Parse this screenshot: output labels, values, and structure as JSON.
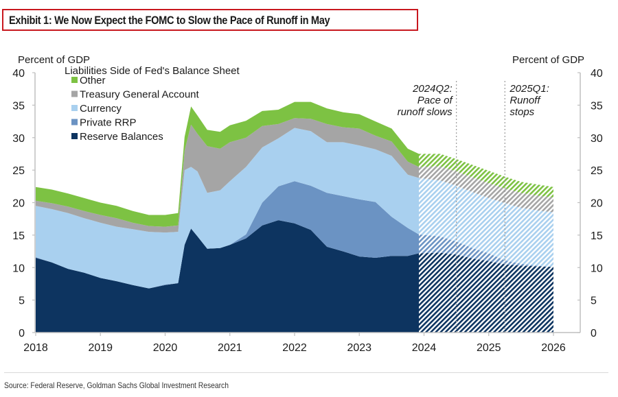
{
  "header": {
    "title": "Exhibit 1: We Now Expect the FOMC to Slow the Pace of Runoff in May"
  },
  "footer": {
    "source": "Source: Federal Reserve, Goldman Sachs Global Investment Research"
  },
  "chart_data": {
    "type": "area",
    "stacked": true,
    "title": "Liabilities Side of Fed's Balance Sheet",
    "ylabel_left": "Percent of GDP",
    "ylabel_right": "Percent of GDP",
    "xlabel": "",
    "xlim": [
      2018,
      2026
    ],
    "ylim": [
      0,
      40
    ],
    "yticks": [
      0,
      5,
      10,
      15,
      20,
      25,
      30,
      35,
      40
    ],
    "xticks": [
      "2018",
      "2019",
      "2020",
      "2021",
      "2022",
      "2023",
      "2024",
      "2025",
      "2026"
    ],
    "grid": false,
    "legend_position": "top-left",
    "forecast_start": 2023.92,
    "forecast_style": "hatched",
    "annotations": [
      {
        "x": 2024.5,
        "lines": [
          "2024Q2:",
          "Pace of",
          "runoff slows"
        ],
        "style": "dotted-vertical-line"
      },
      {
        "x": 2025.25,
        "lines": [
          "2025Q1:",
          "Runoff",
          "stops"
        ],
        "style": "dotted-vertical-line"
      }
    ],
    "x": [
      2018.0,
      2018.25,
      2018.5,
      2018.75,
      2019.0,
      2019.25,
      2019.5,
      2019.75,
      2020.0,
      2020.2,
      2020.3,
      2020.4,
      2020.5,
      2020.65,
      2020.85,
      2021.0,
      2021.25,
      2021.5,
      2021.75,
      2022.0,
      2022.25,
      2022.5,
      2022.75,
      2023.0,
      2023.25,
      2023.5,
      2023.75,
      2023.92,
      2024.25,
      2024.5,
      2024.75,
      2025.0,
      2025.25,
      2025.5,
      2025.75,
      2026.0
    ],
    "series": [
      {
        "name": "Reserve Balances",
        "color": "#0d3460",
        "values": [
          11.5,
          10.8,
          9.8,
          9.2,
          8.4,
          7.9,
          7.3,
          6.8,
          7.3,
          7.6,
          13.5,
          16.0,
          14.8,
          12.9,
          13.0,
          13.5,
          14.5,
          16.5,
          17.3,
          16.8,
          15.8,
          13.2,
          12.5,
          11.7,
          11.5,
          11.8,
          11.8,
          12.2,
          12.3,
          12.0,
          11.4,
          11.0,
          10.5,
          10.3,
          10.2,
          10.1
        ]
      },
      {
        "name": "Private RRP",
        "color": "#6b93c3",
        "values": [
          0.1,
          0.0,
          0.0,
          0.0,
          0.0,
          0.0,
          0.0,
          0.0,
          0.1,
          0.0,
          0.0,
          0.0,
          0.0,
          0.0,
          0.0,
          0.0,
          0.6,
          3.5,
          5.2,
          6.5,
          6.8,
          8.3,
          8.5,
          8.8,
          8.6,
          6.0,
          4.3,
          2.9,
          2.5,
          2.0,
          1.6,
          1.2,
          0.6,
          0.3,
          0.1,
          0.0
        ]
      },
      {
        "name": "Currency",
        "color": "#a9d0ef",
        "values": [
          7.9,
          8.2,
          8.6,
          8.4,
          8.5,
          8.4,
          8.6,
          8.7,
          8.0,
          7.9,
          11.5,
          9.5,
          10.0,
          8.6,
          8.9,
          9.8,
          10.4,
          8.5,
          7.4,
          8.2,
          8.4,
          7.8,
          8.3,
          8.3,
          8.1,
          9.4,
          8.2,
          8.7,
          8.6,
          8.6,
          8.6,
          8.5,
          8.8,
          8.6,
          8.5,
          8.4
        ]
      },
      {
        "name": "Treasury General Account",
        "color": "#a5a5a5",
        "values": [
          0.8,
          0.9,
          1.0,
          1.1,
          1.2,
          1.3,
          1.0,
          0.9,
          0.9,
          1.0,
          3.0,
          6.5,
          5.8,
          7.2,
          6.4,
          6.0,
          4.5,
          3.3,
          2.2,
          1.5,
          1.9,
          2.8,
          2.3,
          2.6,
          2.1,
          2.2,
          2.0,
          1.7,
          2.2,
          2.2,
          2.3,
          2.3,
          2.3,
          2.3,
          2.3,
          2.3
        ]
      },
      {
        "name": "Other",
        "color": "#7dc243",
        "values": [
          2.1,
          2.1,
          2.0,
          2.0,
          1.9,
          1.9,
          1.8,
          1.7,
          1.8,
          1.9,
          2.1,
          2.8,
          2.8,
          2.5,
          2.6,
          2.6,
          2.6,
          2.3,
          2.2,
          2.5,
          2.6,
          2.4,
          2.3,
          2.2,
          2.2,
          2.0,
          2.0,
          2.0,
          1.9,
          1.9,
          1.9,
          1.9,
          1.8,
          1.7,
          1.7,
          1.6
        ]
      }
    ]
  }
}
